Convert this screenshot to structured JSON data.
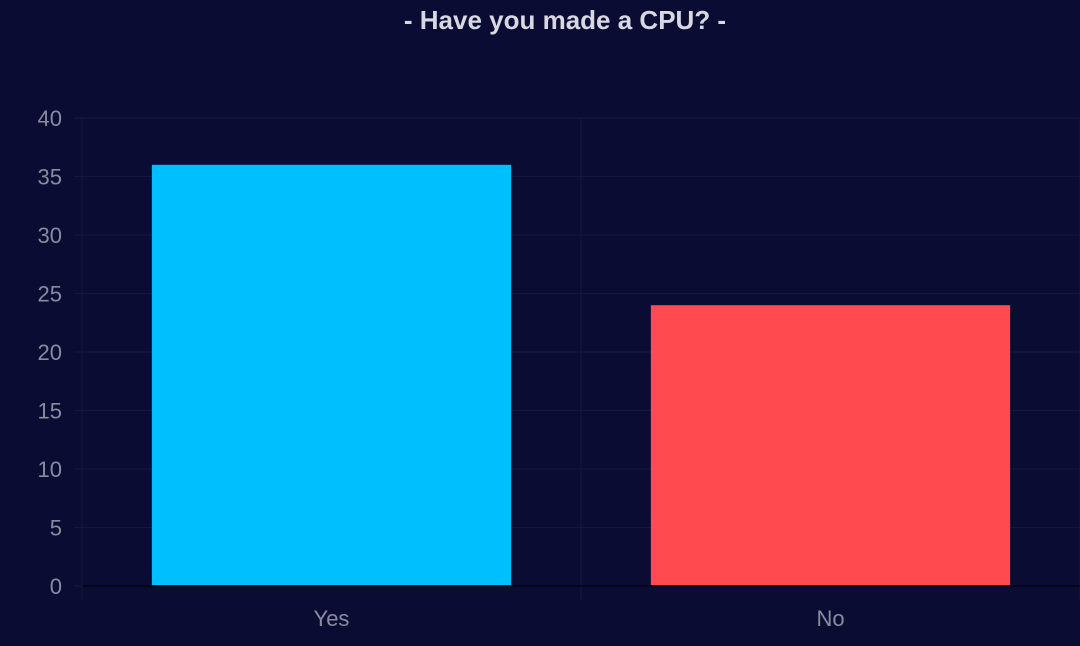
{
  "chart_data": {
    "type": "bar",
    "title": "- Have you made a CPU? -",
    "categories": [
      "Yes",
      "No"
    ],
    "values": [
      36,
      24
    ],
    "colors": [
      "#00bfff",
      "#ff4a4f"
    ],
    "ylim": [
      0,
      40
    ],
    "yticks": [
      0,
      5,
      10,
      15,
      20,
      25,
      30,
      35,
      40
    ],
    "grid": true,
    "legend": "none",
    "xlabel": "",
    "ylabel": ""
  },
  "theme": {
    "background": "#0b0c33",
    "grid_color": "#15173f",
    "axis_color": "#050616",
    "tick_text_color": "#8a8aa0",
    "title_color": "#d8d8e2"
  }
}
